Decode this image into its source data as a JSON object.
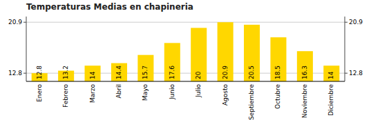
{
  "chart_data": {
    "type": "bar",
    "title": "Temperaturas Medias en chapineria",
    "categories": [
      "Enero",
      "Febrero",
      "Marzo",
      "Abril",
      "Mayo",
      "Junio",
      "Julio",
      "Agosto",
      "Septiembre",
      "Octubre",
      "Noviembre",
      "Diciembre"
    ],
    "values": [
      12.8,
      13.2,
      14.0,
      14.4,
      15.7,
      17.6,
      20.0,
      20.9,
      20.5,
      18.5,
      16.3,
      14.0
    ],
    "color": "#FFD700",
    "ylim": [
      11.5,
      21.8
    ],
    "yticks": [
      12.8,
      20.9
    ],
    "grid": true,
    "data_labels": true
  }
}
